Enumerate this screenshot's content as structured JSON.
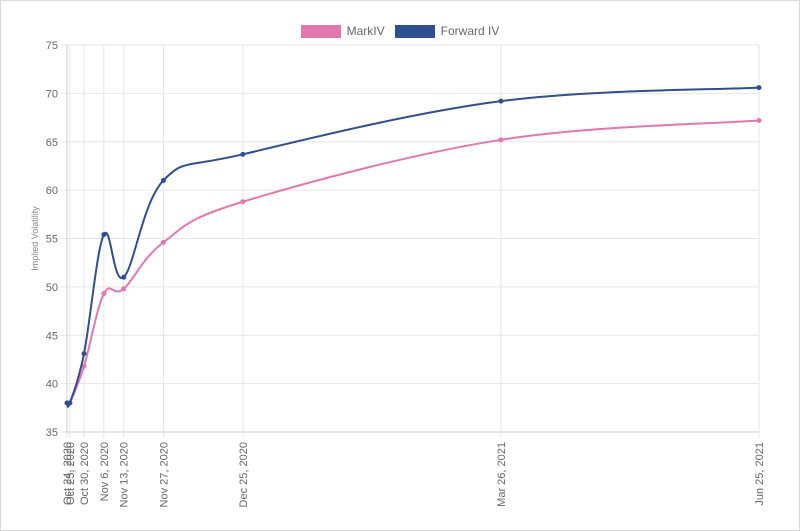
{
  "chart_data": {
    "type": "line",
    "title": "",
    "xlabel": "",
    "ylabel": "Implied Volatility",
    "ylim": [
      35,
      75
    ],
    "yticks": [
      35,
      40,
      45,
      50,
      55,
      60,
      65,
      70,
      75
    ],
    "x": [
      "Oct 24, 2020",
      "Oct 25, 2020",
      "Oct 30, 2020",
      "Nov 6, 2020",
      "Nov 13, 2020",
      "Nov 27, 2020",
      "Dec 25, 2020",
      "Mar 26, 2021",
      "Jun 25, 2021"
    ],
    "legend_position": "top-center",
    "grid": true,
    "series": [
      {
        "name": "MarkIV",
        "color": "#e377b0",
        "values": [
          38.0,
          38.0,
          41.8,
          49.3,
          49.8,
          54.6,
          58.8,
          65.2,
          67.2
        ]
      },
      {
        "name": "Forward IV",
        "color": "#2f4f91",
        "values": [
          38.0,
          38.0,
          43.1,
          55.4,
          51.0,
          61.0,
          63.7,
          69.2,
          70.6
        ]
      }
    ]
  }
}
